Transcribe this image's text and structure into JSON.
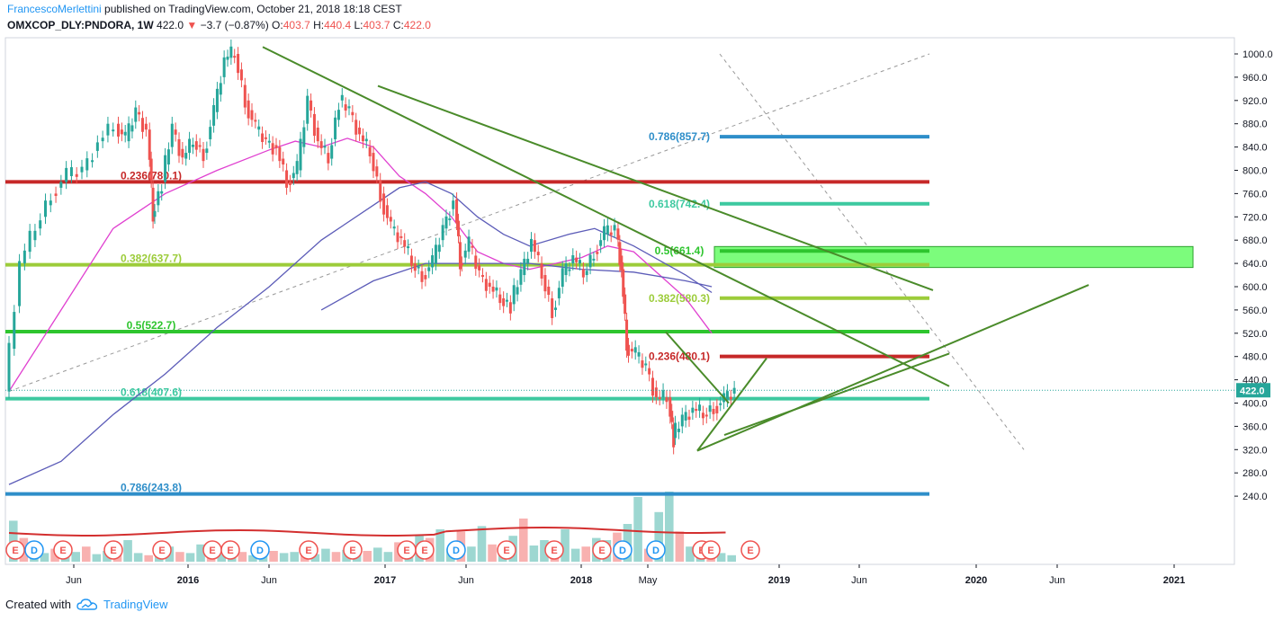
{
  "header": {
    "author": "FrancescoMerlettini",
    "published": "published on TradingView.com, October 21, 2018 18:18 CEST",
    "symbol": "OMXCOP_DLY:PNDORA, 1W",
    "last": "422.0",
    "change_arrow": "▼",
    "change": "−3.7 (−0.87%)",
    "o_label": "O:",
    "o": "403.7",
    "h_label": "H:",
    "h": "440.4",
    "l_label": "L:",
    "l": "403.7",
    "c_label": "C:",
    "c": "422.0"
  },
  "footer": {
    "created_with": "Created with",
    "brand": "TradingView",
    "logo_icon": "tradingview-cloud-icon"
  },
  "colors": {
    "up": "#26a69a",
    "down": "#ef5350",
    "trend": "#4a8b2a",
    "ma_pink": "#e040d0",
    "ma_blue": "#5c5cb8",
    "fib_red": "#c62828",
    "fib_teal": "#3dc9a0",
    "fib_lime": "#9ccc3a",
    "fib_green": "#2ec52e",
    "fib_blue": "#2e8ec9"
  },
  "chart_data": {
    "type": "candlestick",
    "price_axis": {
      "ticks": [
        "1000.0",
        "960.0",
        "920.0",
        "880.0",
        "840.0",
        "800.0",
        "760.0",
        "720.0",
        "680.0",
        "640.0",
        "600.0",
        "560.0",
        "520.0",
        "480.0",
        "440.0",
        "400.0",
        "360.0",
        "320.0",
        "280.0",
        "240.0"
      ],
      "last_price_label": "422.0",
      "range": [
        210,
        1020
      ]
    },
    "time_axis": {
      "labels": [
        {
          "text": "Jun",
          "bold": false
        },
        {
          "text": "2016",
          "bold": true
        },
        {
          "text": "Jun",
          "bold": false
        },
        {
          "text": "2017",
          "bold": true
        },
        {
          "text": "Jun",
          "bold": false
        },
        {
          "text": "2018",
          "bold": true
        },
        {
          "text": "May",
          "bold": false
        },
        {
          "text": "2019",
          "bold": true
        },
        {
          "text": "Jun",
          "bold": false
        },
        {
          "text": "2020",
          "bold": true
        },
        {
          "text": "Jun",
          "bold": false
        },
        {
          "text": "2021",
          "bold": true
        }
      ]
    },
    "fib_retracement_left": [
      {
        "label": "0.236(780.1)",
        "price": 780.1,
        "color_key": "fib_red"
      },
      {
        "label": "0.382(637.7)",
        "price": 637.7,
        "color_key": "fib_lime"
      },
      {
        "label": "0.5(522.7)",
        "price": 522.7,
        "color_key": "fib_green"
      },
      {
        "label": "0.618(407.6)",
        "price": 407.6,
        "color_key": "fib_teal"
      },
      {
        "label": "0.786(243.8)",
        "price": 243.8,
        "color_key": "fib_blue"
      }
    ],
    "fib_retracement_right": [
      {
        "label": "0.786(857.7)",
        "price": 857.7,
        "color_key": "fib_blue"
      },
      {
        "label": "0.618(742.4)",
        "price": 742.4,
        "color_key": "fib_teal"
      },
      {
        "label": "0.5(661.4)",
        "price": 661.4,
        "color_key": "fib_green"
      },
      {
        "label": "0.382(580.3)",
        "price": 580.3,
        "color_key": "fib_lime"
      },
      {
        "label": "0.236(480.1)",
        "price": 480.1,
        "color_key": "fib_red"
      }
    ],
    "target_zone": {
      "price_low": 633,
      "price_high": 669
    },
    "price_path": [
      [
        0,
        420
      ],
      [
        6,
        640
      ],
      [
        12,
        700
      ],
      [
        18,
        760
      ],
      [
        24,
        790
      ],
      [
        30,
        800
      ],
      [
        36,
        850
      ],
      [
        42,
        880
      ],
      [
        46,
        850
      ],
      [
        50,
        900
      ],
      [
        54,
        870
      ],
      [
        56,
        720
      ],
      [
        60,
        780
      ],
      [
        64,
        870
      ],
      [
        68,
        820
      ],
      [
        72,
        850
      ],
      [
        76,
        830
      ],
      [
        80,
        900
      ],
      [
        84,
        990
      ],
      [
        88,
        1000
      ],
      [
        92,
        920
      ],
      [
        96,
        870
      ],
      [
        100,
        850
      ],
      [
        104,
        840
      ],
      [
        108,
        780
      ],
      [
        112,
        800
      ],
      [
        116,
        920
      ],
      [
        120,
        850
      ],
      [
        124,
        820
      ],
      [
        128,
        920
      ],
      [
        132,
        900
      ],
      [
        136,
        860
      ],
      [
        140,
        830
      ],
      [
        144,
        760
      ],
      [
        148,
        700
      ],
      [
        152,
        680
      ],
      [
        156,
        640
      ],
      [
        160,
        620
      ],
      [
        164,
        640
      ],
      [
        168,
        700
      ],
      [
        172,
        750
      ],
      [
        174,
        640
      ],
      [
        178,
        670
      ],
      [
        182,
        620
      ],
      [
        186,
        600
      ],
      [
        190,
        580
      ],
      [
        194,
        570
      ],
      [
        198,
        620
      ],
      [
        202,
        680
      ],
      [
        206,
        620
      ],
      [
        210,
        560
      ],
      [
        214,
        620
      ],
      [
        218,
        650
      ],
      [
        222,
        620
      ],
      [
        226,
        660
      ],
      [
        230,
        690
      ],
      [
        234,
        700
      ],
      [
        236,
        630
      ],
      [
        238,
        500
      ],
      [
        242,
        480
      ],
      [
        246,
        460
      ],
      [
        250,
        410
      ],
      [
        254,
        410
      ],
      [
        256,
        340
      ],
      [
        260,
        370
      ],
      [
        264,
        390
      ],
      [
        268,
        380
      ],
      [
        272,
        395
      ],
      [
        276,
        405
      ],
      [
        280,
        422
      ]
    ],
    "volume_bars": [
      38,
      22,
      10,
      8,
      12,
      6,
      9,
      14,
      7,
      10,
      12,
      20,
      8,
      6,
      11,
      14,
      9,
      8,
      16,
      10,
      7,
      12,
      9,
      6,
      11,
      10,
      8,
      9,
      14,
      7,
      12,
      9,
      11,
      8,
      10,
      13,
      9,
      18,
      11,
      24,
      22,
      30,
      12,
      28,
      14,
      33,
      16,
      12,
      24,
      40,
      15,
      20,
      10,
      30,
      12,
      14,
      22,
      20,
      27,
      35,
      60,
      12,
      46,
      65,
      28,
      14,
      18,
      10,
      8,
      6
    ],
    "event_markers": [
      {
        "t": "E",
        "type": "earnings"
      },
      {
        "t": "D",
        "type": "dividend"
      },
      {
        "t": "E",
        "type": "earnings"
      },
      {
        "t": "E",
        "type": "earnings"
      },
      {
        "t": "E",
        "type": "earnings"
      },
      {
        "t": "E",
        "type": "earnings"
      },
      {
        "t": "E",
        "type": "earnings"
      },
      {
        "t": "D",
        "type": "dividend"
      },
      {
        "t": "E",
        "type": "earnings"
      },
      {
        "t": "E",
        "type": "earnings"
      },
      {
        "t": "E",
        "type": "earnings"
      },
      {
        "t": "E",
        "type": "earnings"
      },
      {
        "t": "D",
        "type": "dividend"
      },
      {
        "t": "E",
        "type": "earnings"
      },
      {
        "t": "E",
        "type": "earnings"
      },
      {
        "t": "E",
        "type": "earnings"
      },
      {
        "t": "D",
        "type": "dividend"
      },
      {
        "t": "D",
        "type": "dividend"
      },
      {
        "t": "E",
        "type": "earnings"
      },
      {
        "t": "E",
        "type": "earnings"
      },
      {
        "t": "E",
        "type": "earnings"
      }
    ]
  }
}
